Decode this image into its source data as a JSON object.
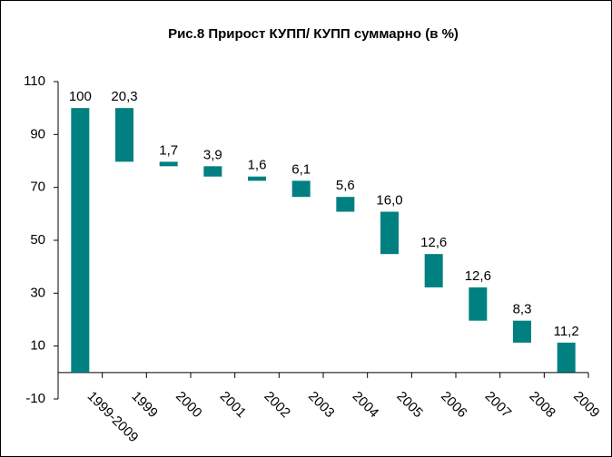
{
  "chart_data": {
    "type": "waterfall",
    "title": "Рис.8 Прирост КУПП/ КУПП суммарно (в %)",
    "categories": [
      "1999-2009",
      "1999",
      "2000",
      "2001",
      "2002",
      "2003",
      "2004",
      "2005",
      "2006",
      "2007",
      "2008",
      "2009"
    ],
    "values": [
      100,
      20.3,
      1.7,
      3.9,
      1.6,
      6.1,
      5.6,
      16.0,
      12.6,
      12.6,
      8.3,
      11.2
    ],
    "value_labels": [
      "100",
      "20,3",
      "1,7",
      "3,9",
      "1,6",
      "6,1",
      "5,6",
      "16,0",
      "12,6",
      "12,6",
      "8,3",
      "11,2"
    ],
    "color": "#008080",
    "ylim": [
      -10,
      110
    ],
    "yticks": [
      -10,
      10,
      30,
      50,
      70,
      90,
      110
    ],
    "grid": false
  }
}
